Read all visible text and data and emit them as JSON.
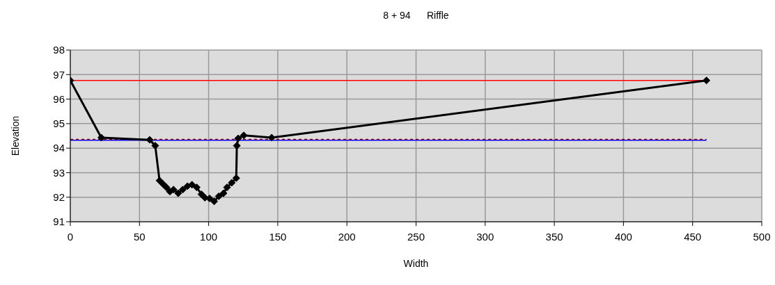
{
  "chart_data": {
    "type": "line",
    "title": "8 + 94      Riffle",
    "xlabel": "Width",
    "ylabel": "Elevation",
    "xlim": [
      0,
      500
    ],
    "xticks": [
      0,
      50,
      100,
      150,
      200,
      250,
      300,
      350,
      400,
      450,
      500
    ],
    "ylim": [
      91,
      98
    ],
    "yticks": [
      91,
      92,
      93,
      94,
      95,
      96,
      97,
      98
    ],
    "grid": true,
    "series": [
      {
        "color": "#ff0000",
        "x": [
          0,
          460
        ],
        "values": [
          96.76,
          96.76
        ],
        "marker": "none",
        "line_style": "solid"
      },
      {
        "color": "#0000ff",
        "x": [
          0,
          460
        ],
        "values": [
          94.32,
          94.32
        ],
        "marker": "none",
        "line_style": "solid"
      },
      {
        "color": "#990000",
        "x": [
          0,
          460
        ],
        "values": [
          94.36,
          94.36
        ],
        "marker": "none",
        "line_style": "dashed"
      },
      {
        "color": "#000000",
        "marker": "diamond",
        "line_style": "solid",
        "x": [
          0,
          22.4,
          57.4,
          61.4,
          64.5,
          67,
          69.5,
          72,
          74.6,
          78,
          81.3,
          84.7,
          88,
          91.4,
          94.8,
          97.3,
          100.7,
          104,
          107.4,
          110.8,
          113.3,
          116.7,
          120,
          120.4,
          121.4,
          125.4,
          145.6,
          460
        ],
        "values": [
          96.76,
          94.43,
          94.34,
          94.1,
          92.68,
          92.54,
          92.4,
          92.23,
          92.31,
          92.16,
          92.31,
          92.45,
          92.51,
          92.4,
          92.12,
          91.98,
          91.95,
          91.83,
          92.04,
          92.16,
          92.4,
          92.59,
          92.78,
          94.1,
          94.4,
          94.52,
          94.43,
          96.76
        ]
      }
    ]
  }
}
